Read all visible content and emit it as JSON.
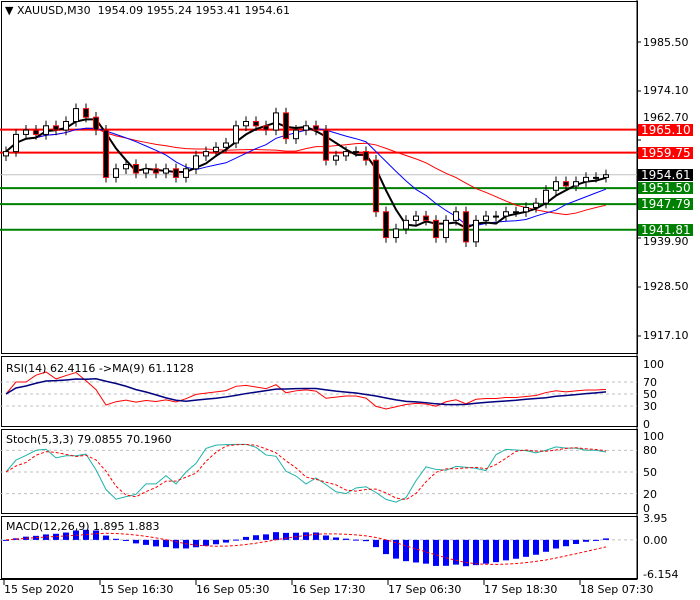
{
  "header": {
    "symbol_tf": "XAUUSD,M30",
    "ohlc": "1954.09 1955.24 1953.41 1954.61"
  },
  "colors": {
    "bull": "#000000",
    "bear": "#ff0000",
    "resistance": "#ff0000",
    "support": "#008000",
    "ma_fast": "#000000",
    "ma_mid": "#0000ff",
    "ma_slow": "#ff0000",
    "rsi": "#ff0000",
    "rsi_ma": "#000080",
    "stoch_main": "#20b2aa",
    "stoch_signal": "#ff0000",
    "macd_hist": "#0000ff",
    "macd_signal": "#ff0000"
  },
  "chart_data": [
    {
      "type": "candlestick",
      "title": "XAUUSD,M30",
      "ylim": [
        1912,
        1994
      ],
      "y_ticks": [
        "1985.50",
        "1974.10",
        "1962.70",
        "1939.90",
        "1928.50",
        "1917.10"
      ],
      "x_ticks": [
        "15 Sep 2020",
        "15 Sep 16:30",
        "16 Sep 05:30",
        "16 Sep 17:30",
        "17 Sep 06:30",
        "17 Sep 18:30",
        "18 Sep 07:30"
      ],
      "closes": [
        1960,
        1964,
        1965,
        1964,
        1966,
        1965,
        1967,
        1970,
        1968,
        1965,
        1954,
        1956,
        1957,
        1955,
        1956,
        1955,
        1956,
        1954,
        1956,
        1959,
        1960,
        1961,
        1962,
        1966,
        1967,
        1966,
        1965,
        1969,
        1963,
        1965,
        1966,
        1965,
        1958,
        1959,
        1960,
        1960,
        1958,
        1946,
        1940,
        1942,
        1944,
        1945,
        1944,
        1940,
        1944,
        1946,
        1939,
        1944,
        1945,
        1945,
        1946,
        1946,
        1947,
        1948,
        1951,
        1953,
        1952,
        1953,
        1954,
        1954,
        1954.61
      ],
      "levels": [
        {
          "value": 1965.1,
          "label": "1965.10",
          "kind": "resistance"
        },
        {
          "value": 1959.75,
          "label": "1959.75",
          "kind": "resistance"
        },
        {
          "value": 1951.5,
          "label": "1951.50",
          "kind": "support"
        },
        {
          "value": 1947.79,
          "label": "1947.79",
          "kind": "support"
        },
        {
          "value": 1941.81,
          "label": "1941.81",
          "kind": "support"
        }
      ],
      "current_price": {
        "value": 1954.61,
        "label": "1954.61"
      }
    },
    {
      "type": "line",
      "title": "RSI(14) 62.4116  ->MA(9) 61.1128",
      "ylim": [
        0,
        100
      ],
      "y_ticks": [
        "100",
        "70",
        "50",
        "30",
        "0"
      ],
      "levels": [
        70,
        50,
        30
      ]
    },
    {
      "type": "line",
      "title": "Stoch(5,3,3) 79.0855 70.1960",
      "ylim": [
        0,
        100
      ],
      "y_ticks": [
        "100",
        "80",
        "50",
        "20",
        "0"
      ],
      "levels": [
        80,
        50,
        20
      ]
    },
    {
      "type": "bar",
      "title": "MACD(12,26,9) 1.895 1.883",
      "ylim": [
        -6.154,
        3.95
      ],
      "y_ticks": [
        "3.95",
        "0.00",
        "-6.154"
      ]
    }
  ]
}
